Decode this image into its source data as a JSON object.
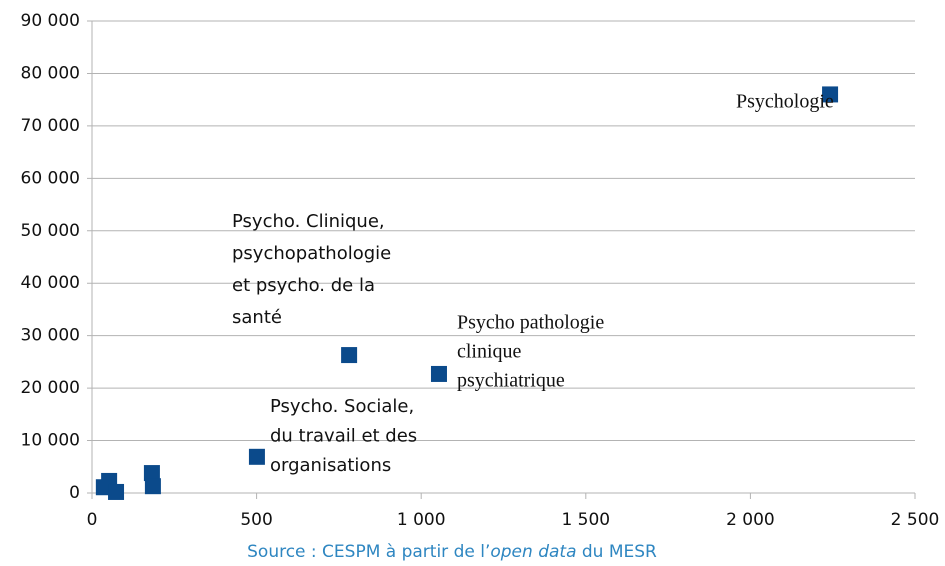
{
  "chart_data": {
    "type": "scatter",
    "x": [
      2242,
      781,
      1054,
      501,
      182,
      185,
      52,
      36,
      73
    ],
    "values": [
      76000,
      26300,
      22700,
      6900,
      3800,
      1300,
      2300,
      1100,
      200
    ],
    "color": "#0b4a8b",
    "xlim": [
      0,
      2500
    ],
    "xticks": [
      0,
      500,
      {
        "value": 1000,
        "label": "1 000"
      },
      {
        "value": 1500,
        "label": "1 500"
      },
      {
        "value": 2000,
        "label": "2 000"
      },
      {
        "value": 2500,
        "label": "2 500"
      }
    ],
    "ylim": [
      0,
      90000
    ],
    "yticks": [
      0,
      {
        "value": 10000,
        "label": "10 000"
      },
      {
        "value": 20000,
        "label": "20 000"
      },
      {
        "value": 30000,
        "label": "30 000"
      },
      {
        "value": 40000,
        "label": "40 000"
      },
      {
        "value": 50000,
        "label": "50 000"
      },
      {
        "value": 60000,
        "label": "60 000"
      },
      {
        "value": 70000,
        "label": "70 000"
      },
      {
        "value": 80000,
        "label": "80 000"
      },
      {
        "value": 90000,
        "label": "90 000"
      }
    ],
    "grid": true,
    "annotations": [
      {
        "lines": [
          "Psychologie"
        ]
      },
      {
        "lines": [
          "Psycho.  Clinique,",
          "psychopathologie",
          "et psycho. de la",
          "santé"
        ]
      },
      {
        "lines": [
          "Psycho pathologie",
          "clinique",
          "psychiatrique"
        ]
      },
      {
        "lines": [
          "Psycho. Sociale,",
          "du travail et des",
          "organisations"
        ]
      }
    ],
    "source": [
      "Source : CESPM à partir de l’",
      "open data",
      " du MESR"
    ]
  }
}
